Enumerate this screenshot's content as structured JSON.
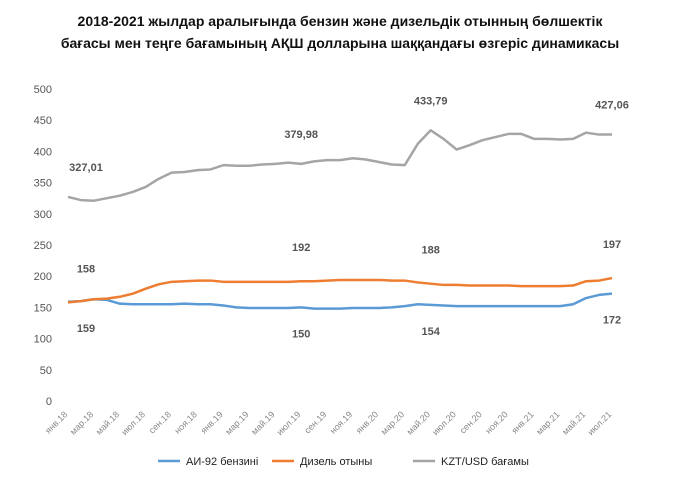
{
  "chart_data": {
    "type": "line",
    "title": [
      "2018-2021 жылдар аралығында бензин және дизельдік отынның бөлшектік",
      "бағасы мен теңге бағамының АҚШ долларына шаққандағы өзгеріс динамикасы"
    ],
    "categories": [
      "янв.18",
      null,
      "мар.18",
      null,
      "май.18",
      null,
      "июл.18",
      null,
      "сен.18",
      null,
      "ноя.18",
      null,
      "янв.19",
      null,
      "мар.19",
      null,
      "май.19",
      null,
      "июл.19",
      null,
      "сен.19",
      null,
      "ноя.19",
      null,
      "янв.20",
      null,
      "мар.20",
      null,
      "май.20",
      null,
      "июл.20",
      null,
      "сен.20",
      null,
      "ноя.20",
      null,
      "янв.21",
      null,
      "мар.21",
      null,
      "май.21",
      null,
      "июл.21"
    ],
    "series": [
      {
        "name": "АИ-92 бензині",
        "color": "#5b9bd5",
        "values": [
          159,
          160,
          163,
          162,
          156,
          155,
          155,
          155,
          155,
          156,
          155,
          155,
          153,
          150,
          149,
          149,
          149,
          149,
          150,
          148,
          148,
          148,
          149,
          149,
          149,
          150,
          152,
          155,
          154,
          153,
          152,
          152,
          152,
          152,
          152,
          152,
          152,
          152,
          152,
          155,
          165,
          170,
          172
        ],
        "value_labels": [
          "159",
          null,
          null,
          null,
          null,
          null,
          null,
          null,
          null,
          null,
          null,
          null,
          null,
          null,
          null,
          null,
          null,
          null,
          "150",
          null,
          null,
          null,
          null,
          null,
          null,
          null,
          null,
          null,
          "154",
          null,
          null,
          null,
          null,
          null,
          null,
          null,
          null,
          null,
          null,
          null,
          null,
          null,
          "172"
        ]
      },
      {
        "name": "Дизель отыны",
        "color": "#ed7d31",
        "values": [
          158,
          160,
          163,
          164,
          167,
          172,
          180,
          187,
          191,
          192,
          193,
          193,
          191,
          191,
          191,
          191,
          191,
          191,
          192,
          192,
          193,
          194,
          194,
          194,
          194,
          193,
          193,
          190,
          188,
          186,
          186,
          185,
          185,
          185,
          185,
          184,
          184,
          184,
          184,
          185,
          192,
          193,
          197
        ],
        "value_labels": [
          "158",
          null,
          null,
          null,
          null,
          null,
          null,
          null,
          null,
          null,
          null,
          null,
          null,
          null,
          null,
          null,
          null,
          null,
          "192",
          null,
          null,
          null,
          null,
          null,
          null,
          null,
          null,
          null,
          "188",
          null,
          null,
          null,
          null,
          null,
          null,
          null,
          null,
          null,
          null,
          null,
          null,
          null,
          "197"
        ]
      },
      {
        "name": "KZT/USD бағамы",
        "color": "#a5a5a5",
        "values": [
          327.01,
          322,
          321,
          325,
          329,
          335,
          343,
          356,
          366,
          367,
          370,
          371,
          378,
          377,
          377,
          379,
          380,
          382,
          379.98,
          384,
          386,
          386,
          389,
          387,
          383,
          379,
          378,
          412,
          433.79,
          420,
          403,
          410,
          418,
          423,
          428,
          428,
          420,
          420,
          419,
          420,
          430,
          427,
          427.06
        ],
        "value_labels": [
          "327,01",
          null,
          null,
          null,
          null,
          null,
          null,
          null,
          null,
          null,
          null,
          null,
          null,
          null,
          null,
          null,
          null,
          null,
          "379,98",
          null,
          null,
          null,
          null,
          null,
          null,
          null,
          null,
          null,
          "433,79",
          null,
          null,
          null,
          null,
          null,
          null,
          null,
          null,
          null,
          null,
          null,
          null,
          null,
          "427,06"
        ]
      }
    ],
    "ylim": [
      0,
      500
    ],
    "yticks": [
      0,
      50,
      100,
      150,
      200,
      250,
      300,
      350,
      400,
      450,
      500
    ],
    "legend": "bottom"
  }
}
